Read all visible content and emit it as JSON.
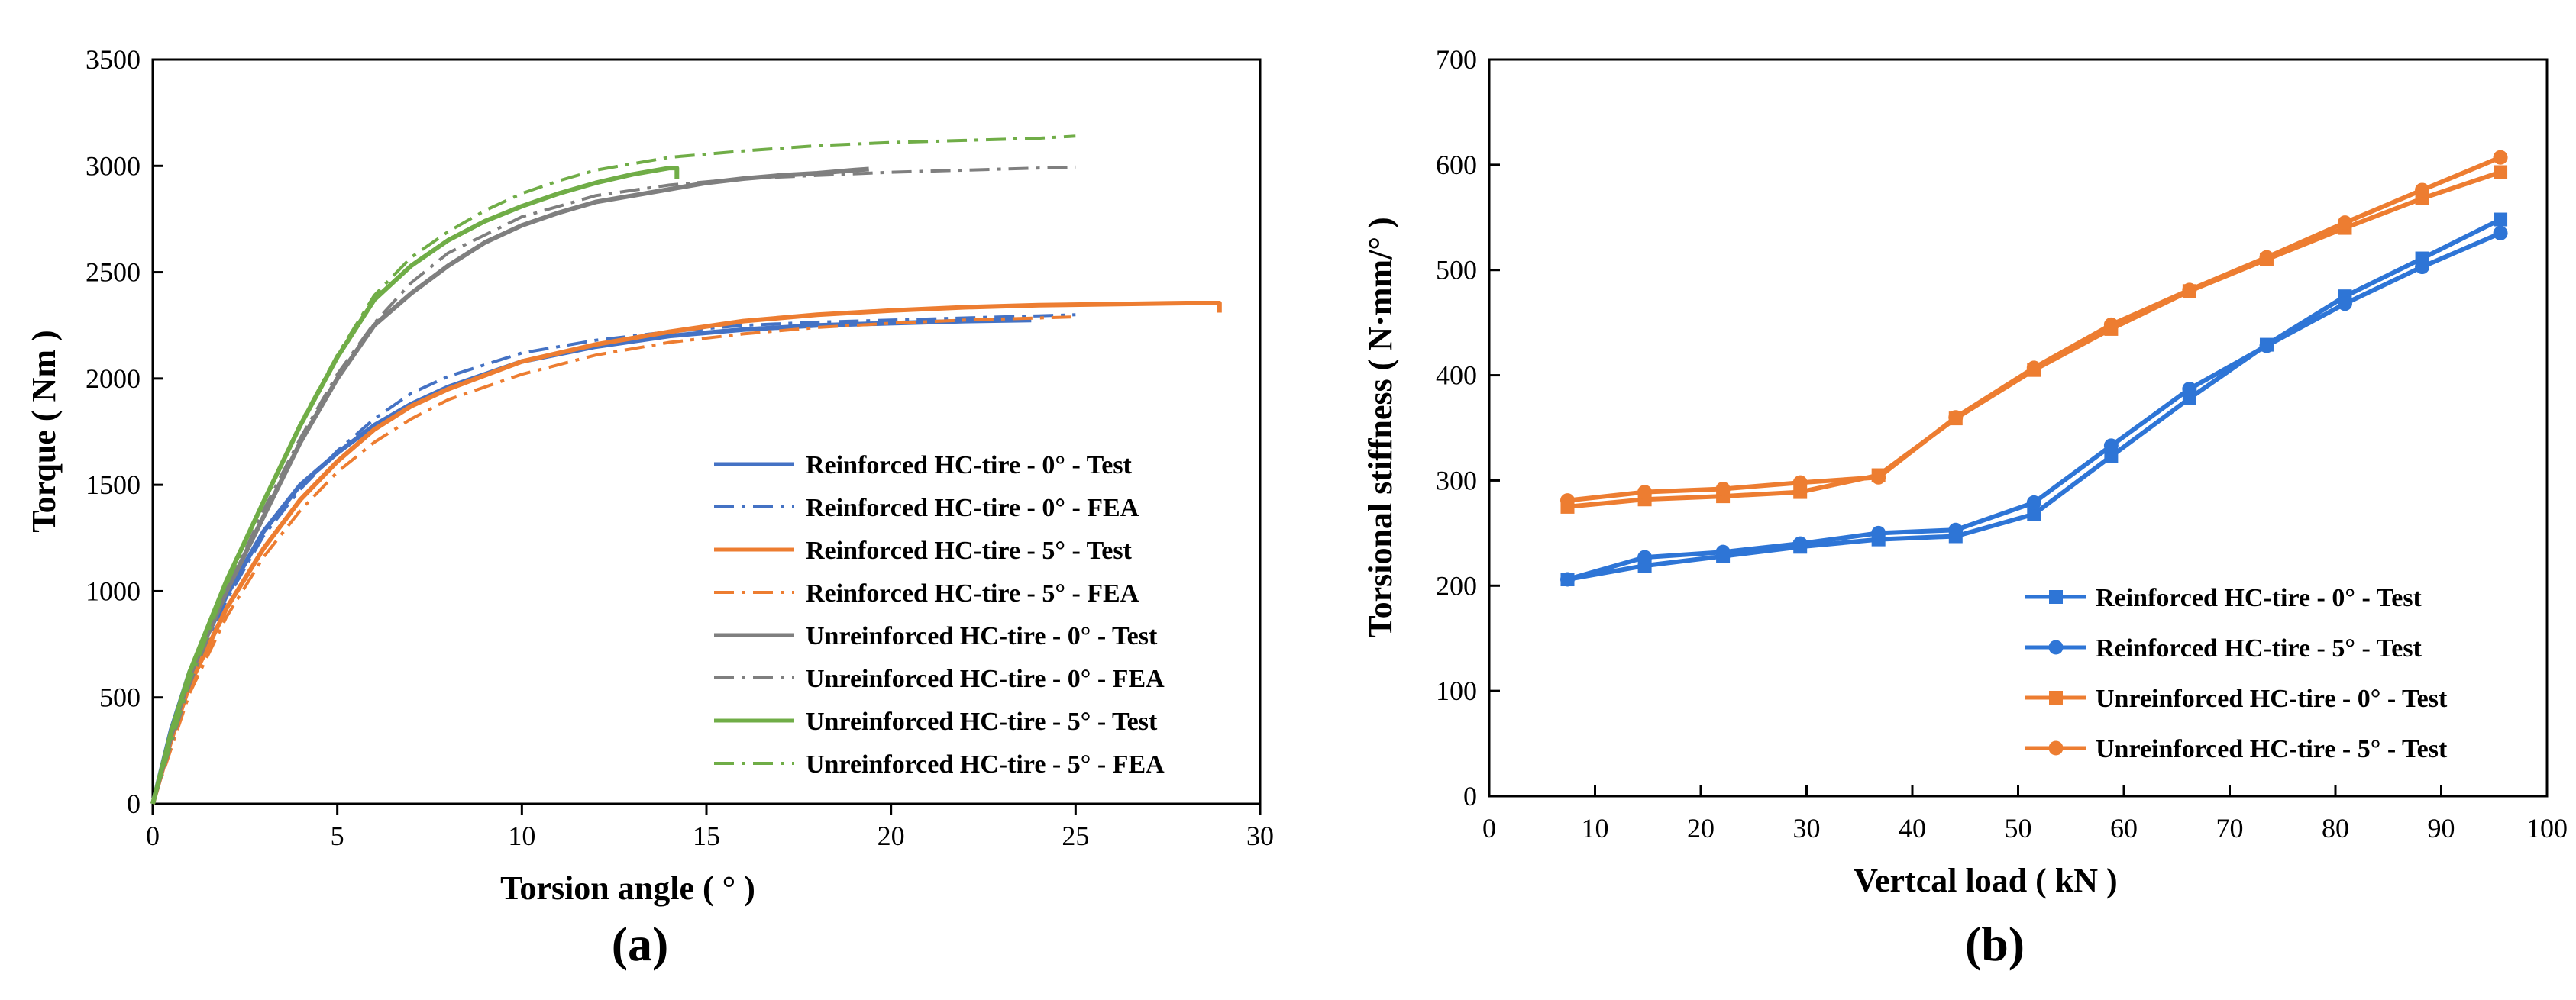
{
  "chart_data": [
    {
      "panel_label": "(a)",
      "type": "line",
      "xlabel": "Torsion angle ( ° )",
      "ylabel": "Torque ( Nm )",
      "xlim": [
        0,
        30
      ],
      "ylim": [
        0,
        3500
      ],
      "xticks": [
        0,
        5,
        10,
        15,
        20,
        25,
        30
      ],
      "yticks": [
        0,
        500,
        1000,
        1500,
        2000,
        2500,
        3000,
        3500
      ],
      "legend_position": "bottom-right",
      "series": [
        {
          "name": "Reinforced HC-tire - 0° - Test",
          "color": "#4472C4",
          "style": "solid",
          "x": [
            0,
            0.5,
            1,
            2,
            3,
            4,
            5,
            6,
            7,
            8,
            10,
            12,
            14,
            16,
            18,
            20,
            22,
            23.8
          ],
          "y": [
            0,
            350,
            620,
            980,
            1280,
            1500,
            1650,
            1780,
            1880,
            1960,
            2080,
            2150,
            2200,
            2230,
            2250,
            2260,
            2270,
            2275
          ]
        },
        {
          "name": "Reinforced HC-tire - 0° - FEA",
          "color": "#4472C4",
          "style": "dashdot",
          "x": [
            0,
            1,
            2,
            3,
            4,
            5,
            6,
            7,
            8,
            10,
            12,
            14,
            16,
            18,
            20,
            22,
            24,
            25
          ],
          "y": [
            0,
            580,
            960,
            1260,
            1480,
            1660,
            1810,
            1930,
            2010,
            2120,
            2180,
            2220,
            2250,
            2265,
            2275,
            2285,
            2295,
            2300
          ]
        },
        {
          "name": "Reinforced HC-tire - 5° - Test",
          "color": "#ED7D31",
          "style": "solid",
          "x": [
            0,
            0.5,
            1,
            2,
            3,
            4,
            5,
            6,
            7,
            8,
            10,
            12,
            14,
            16,
            18,
            20,
            22,
            24,
            26,
            28,
            28.9,
            28.9
          ],
          "y": [
            0,
            300,
            560,
            920,
            1200,
            1430,
            1610,
            1760,
            1870,
            1950,
            2080,
            2160,
            2220,
            2270,
            2300,
            2320,
            2335,
            2345,
            2350,
            2355,
            2355,
            2310
          ]
        },
        {
          "name": "Reinforced HC-tire - 5° - FEA",
          "color": "#ED7D31",
          "style": "dashdot",
          "x": [
            0,
            1,
            2,
            3,
            4,
            5,
            6,
            7,
            8,
            10,
            12,
            14,
            16,
            18,
            20,
            22,
            24,
            25
          ],
          "y": [
            0,
            520,
            880,
            1160,
            1380,
            1560,
            1700,
            1810,
            1900,
            2020,
            2110,
            2170,
            2210,
            2240,
            2260,
            2275,
            2285,
            2290
          ]
        },
        {
          "name": "Unreinforced HC-tire - 0° - Test",
          "color": "#7F7F7F",
          "style": "solid",
          "x": [
            0,
            0.5,
            1,
            2,
            3,
            4,
            5,
            6,
            7,
            8,
            9,
            10,
            11,
            12,
            13,
            14,
            15,
            16,
            17,
            18,
            19,
            19.4
          ],
          "y": [
            0,
            320,
            600,
            1000,
            1350,
            1700,
            2000,
            2250,
            2400,
            2530,
            2640,
            2720,
            2780,
            2830,
            2860,
            2890,
            2920,
            2940,
            2955,
            2965,
            2980,
            2985
          ]
        },
        {
          "name": "Unreinforced HC-tire - 0° - FEA",
          "color": "#7F7F7F",
          "style": "dashdot",
          "x": [
            0,
            1,
            2,
            3,
            4,
            5,
            6,
            7,
            8,
            10,
            12,
            14,
            16,
            18,
            20,
            22,
            24,
            25
          ],
          "y": [
            0,
            560,
            1000,
            1380,
            1720,
            2020,
            2260,
            2450,
            2590,
            2760,
            2860,
            2910,
            2940,
            2955,
            2970,
            2980,
            2990,
            2995
          ]
        },
        {
          "name": "Unreinforced HC-tire - 5° - Test",
          "color": "#70AD47",
          "style": "solid",
          "x": [
            0,
            0.5,
            1,
            2,
            3,
            4,
            5,
            6,
            7,
            8,
            9,
            10,
            11,
            12,
            13,
            14,
            14.2,
            14.2
          ],
          "y": [
            0,
            340,
            620,
            1050,
            1420,
            1780,
            2100,
            2370,
            2530,
            2650,
            2740,
            2810,
            2870,
            2920,
            2960,
            2990,
            2990,
            2940
          ]
        },
        {
          "name": "Unreinforced HC-tire - 5° - FEA",
          "color": "#70AD47",
          "style": "dashdot",
          "x": [
            0,
            1,
            2,
            3,
            4,
            5,
            6,
            7,
            8,
            9,
            10,
            11,
            12,
            13,
            14,
            16,
            18,
            20,
            22,
            24,
            25
          ],
          "y": [
            0,
            580,
            1030,
            1420,
            1790,
            2110,
            2390,
            2570,
            2690,
            2790,
            2870,
            2930,
            2980,
            3010,
            3040,
            3070,
            3095,
            3110,
            3120,
            3130,
            3140
          ]
        }
      ]
    },
    {
      "panel_label": "(b)",
      "type": "line",
      "xlabel": "Vertcal load ( kN )",
      "ylabel": "Torsional stiffness ( N·mm/° )",
      "xlim": [
        0,
        100
      ],
      "ylim": [
        0,
        700
      ],
      "xticks": [
        0,
        10,
        20,
        30,
        40,
        50,
        60,
        70,
        80,
        90,
        100
      ],
      "yticks": [
        0,
        100,
        200,
        300,
        400,
        500,
        600,
        700
      ],
      "legend_position": "bottom-right",
      "series": [
        {
          "name": "Reinforced HC-tire - 0° - Test",
          "color": "#2E75D6",
          "marker": "square",
          "x": [
            7.4,
            14.7,
            22.1,
            29.4,
            36.8,
            44.1,
            51.5,
            58.8,
            66.2,
            73.5,
            80.9,
            88.2,
            95.6
          ],
          "y": [
            206,
            219,
            228,
            237,
            244,
            247,
            268,
            323,
            378,
            429,
            475,
            511,
            548
          ]
        },
        {
          "name": "Reinforced HC-tire - 5° - Test",
          "color": "#2E75D6",
          "marker": "circle",
          "x": [
            7.4,
            14.7,
            22.1,
            29.4,
            36.8,
            44.1,
            51.5,
            58.8,
            66.2,
            73.5,
            80.9,
            88.2,
            95.6
          ],
          "y": [
            206,
            227,
            232,
            240,
            250,
            253,
            279,
            333,
            387,
            428,
            468,
            503,
            535
          ]
        },
        {
          "name": "Unreinforced HC-tire - 0° - Test",
          "color": "#ED7D31",
          "marker": "square",
          "x": [
            7.4,
            14.7,
            22.1,
            29.4,
            36.8,
            44.1,
            51.5,
            58.8,
            66.2,
            73.5,
            80.9,
            88.2,
            95.6
          ],
          "y": [
            275,
            282,
            285,
            289,
            305,
            359,
            405,
            444,
            480,
            510,
            540,
            568,
            593
          ]
        },
        {
          "name": "Unreinforced HC-tire - 5° - Test",
          "color": "#ED7D31",
          "marker": "circle",
          "x": [
            7.4,
            14.7,
            22.1,
            29.4,
            36.8,
            44.1,
            51.5,
            58.8,
            66.2,
            73.5,
            80.9,
            88.2,
            95.6
          ],
          "y": [
            281,
            289,
            292,
            298,
            303,
            360,
            407,
            448,
            481,
            512,
            545,
            576,
            607
          ]
        }
      ]
    }
  ]
}
